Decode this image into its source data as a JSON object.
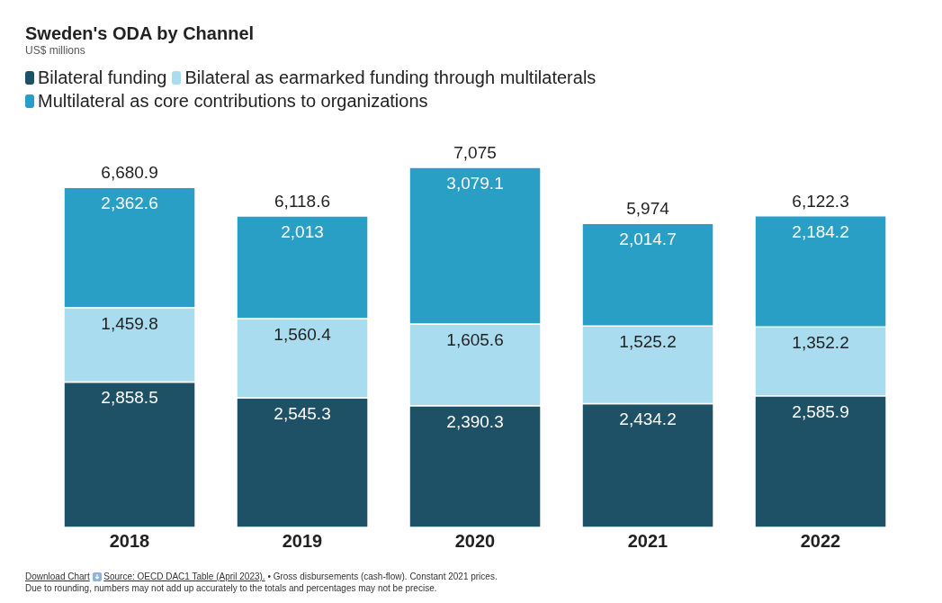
{
  "chart_data": {
    "type": "bar",
    "title": "Sweden's ODA by Channel",
    "subtitle": "US$ millions",
    "stacked": true,
    "legend": "top left",
    "categories": [
      "2018",
      "2019",
      "2020",
      "2021",
      "2022"
    ],
    "series": [
      {
        "name": "Bilateral funding",
        "color": "#1f5166",
        "values": [
          2858.5,
          2545.3,
          2390.3,
          2434.2,
          2585.9
        ],
        "value_labels": [
          "2,858.5",
          "2,545.3",
          "2,390.3",
          "2,434.2",
          "2,585.9"
        ]
      },
      {
        "name": "Bilateral as earmarked funding through multilaterals",
        "color": "#a9dcef",
        "values": [
          1459.8,
          1560.4,
          1605.6,
          1525.2,
          1352.2
        ],
        "value_labels": [
          "1,459.8",
          "1,560.4",
          "1,605.6",
          "1,525.2",
          "1,352.2"
        ]
      },
      {
        "name": "Multilateral as core contributions to organizations",
        "color": "#2a9fc6",
        "values": [
          2362.6,
          2013,
          3079.1,
          2014.7,
          2184.2
        ],
        "value_labels": [
          "2,362.6",
          "2,013",
          "3,079.1",
          "2,014.7",
          "2,184.2"
        ]
      }
    ],
    "totals": [
      "6,680.9",
      "6,118.6",
      "7,075",
      "5,974",
      "6,122.3"
    ],
    "annotations": [
      "Download Chart",
      "Source: OECD DAC1 Table (April 2023).",
      "• Gross disbursements (cash-flow). Constant 2021 prices.",
      "Due to rounding, numbers may not add up accurately to the totals and percentages may not be precise."
    ]
  }
}
